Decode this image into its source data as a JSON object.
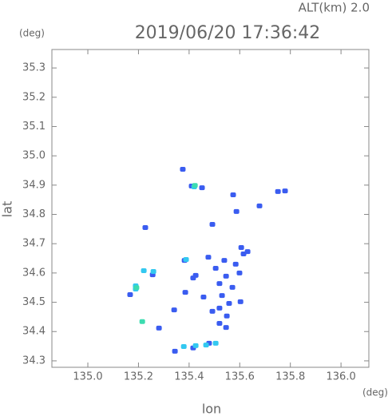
{
  "chart_data": {
    "type": "scatter",
    "title": "2019/06/20 17:36:42",
    "subtitle": "ALT(km) 2.0",
    "xlabel": "lon",
    "ylabel": "lat",
    "xunit": "(deg)",
    "yunit": "(deg)",
    "xlim": [
      134.858,
      136.11
    ],
    "ylim": [
      34.278,
      35.363
    ],
    "xticks": [
      {
        "value": 135,
        "label": "135.0"
      },
      135.2,
      135.4,
      135.6,
      135.8,
      {
        "value": 136,
        "label": "136.0"
      }
    ],
    "yticks": [
      34.3,
      34.4,
      34.5,
      34.6,
      34.7,
      34.8,
      34.9,
      {
        "value": 35,
        "label": "35.0"
      },
      35.1,
      35.2,
      35.3
    ],
    "grid": false,
    "series": [
      {
        "color": "#3a5cf0",
        "x": [
          135.375,
          135.41,
          135.451,
          135.779,
          135.751,
          135.574,
          135.587,
          135.227,
          135.492,
          135.606,
          135.615,
          135.539,
          135.476,
          135.584,
          135.505,
          135.599,
          135.546,
          135.52,
          135.571,
          135.53,
          135.558,
          135.603,
          135.52,
          135.549,
          135.546,
          135.492,
          135.457,
          135.416,
          135.385,
          135.341,
          135.382,
          135.281,
          135.256,
          135.167,
          135.416,
          135.479,
          135.344,
          135.426,
          135.631,
          135.52,
          135.678
        ],
        "values": [
          34.954,
          34.897,
          34.891,
          34.88,
          34.878,
          34.867,
          34.81,
          34.755,
          34.766,
          34.687,
          34.665,
          34.643,
          34.654,
          34.63,
          34.616,
          34.6,
          34.589,
          34.564,
          34.551,
          34.523,
          34.496,
          34.502,
          34.48,
          34.453,
          34.414,
          34.469,
          34.518,
          34.583,
          34.534,
          34.474,
          34.643,
          34.412,
          34.594,
          34.526,
          34.344,
          34.36,
          34.333,
          34.592,
          34.673,
          34.428,
          34.829
        ]
      },
      {
        "color": "#33c8f0",
        "x": [
          135.42,
          135.388,
          135.189,
          135.221,
          135.259,
          135.379,
          135.426,
          135.467,
          135.505,
          135.189
        ],
        "values": [
          34.894,
          34.646,
          34.556,
          34.608,
          34.605,
          34.349,
          34.352,
          34.354,
          34.36,
          34.545
        ]
      },
      {
        "color": "#3cdcb0",
        "x": [
          135.215,
          135.423,
          135.192
        ],
        "values": [
          34.434,
          34.899,
          34.55
        ]
      }
    ]
  }
}
